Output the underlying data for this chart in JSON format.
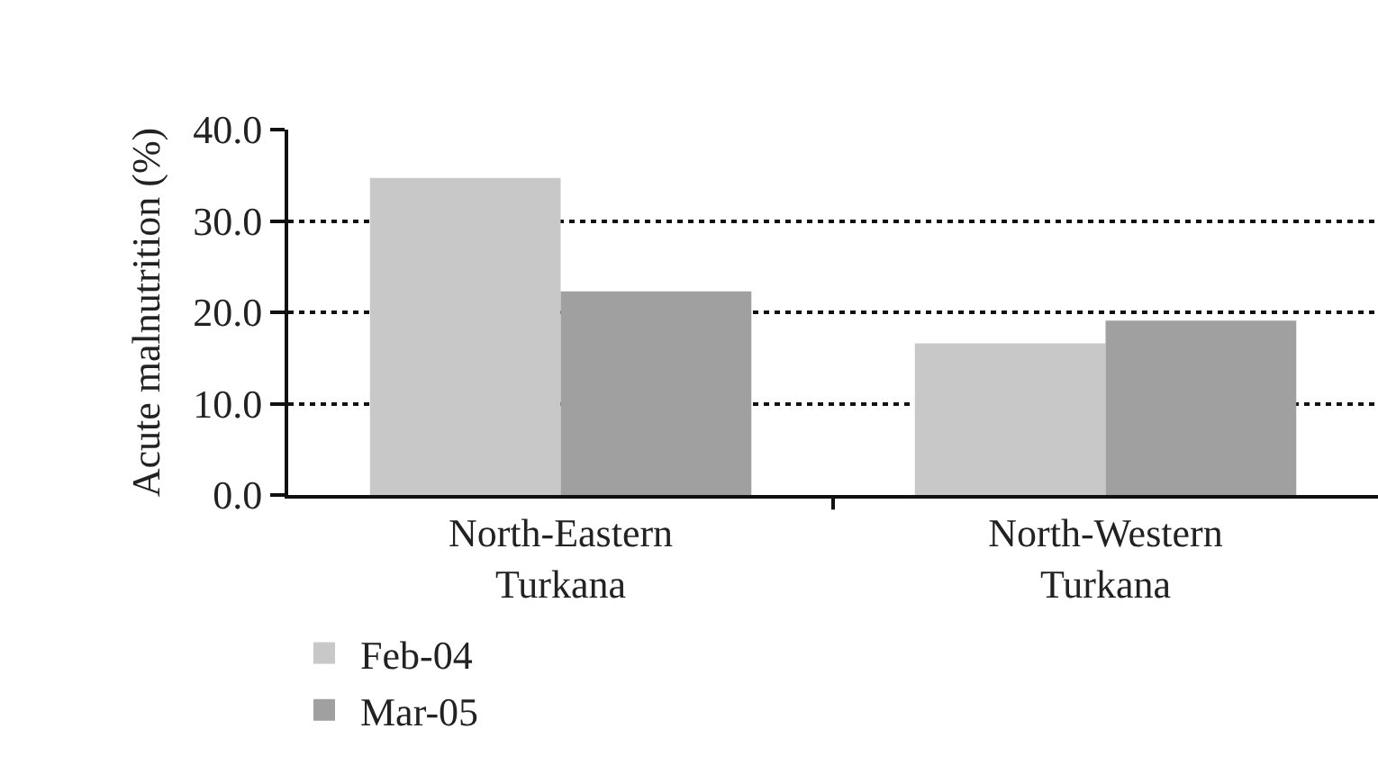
{
  "chart_data": {
    "type": "bar",
    "ylabel": "Acute malnutrition (%)",
    "categories": [
      "North-Eastern Turkana",
      "North-Western Turkana"
    ],
    "series": [
      {
        "name": "Feb-04",
        "color": "#c8c8c8",
        "values": [
          34.7,
          16.6
        ]
      },
      {
        "name": "Mar-05",
        "color": "#a0a0a0",
        "values": [
          22.3,
          19.1
        ]
      }
    ],
    "ylim": [
      0,
      40
    ],
    "yticks": [
      {
        "value": 0,
        "label": "0.0"
      },
      {
        "value": 10,
        "label": "10.0"
      },
      {
        "value": 20,
        "label": "20.0"
      },
      {
        "value": 30,
        "label": "30.0"
      },
      {
        "value": 40,
        "label": "40.0"
      }
    ],
    "grid": "y",
    "legend": "bottom"
  }
}
